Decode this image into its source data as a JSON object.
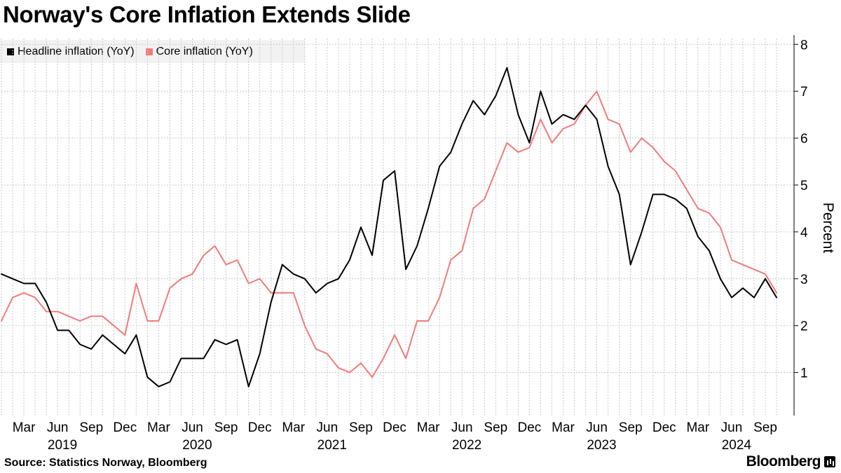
{
  "chart_data": {
    "type": "line",
    "title": "Norway's Core Inflation Extends Slide",
    "xlabel": "",
    "ylabel": "Percent",
    "ylim": [
      0,
      8
    ],
    "yticks": [
      1,
      2,
      3,
      4,
      5,
      6,
      7,
      8
    ],
    "grid": true,
    "legend_position": "top-left",
    "start": "2019-01",
    "x_tick_labels": [
      {
        "month": "Mar",
        "year": "2019",
        "index": 2
      },
      {
        "month": "Jun",
        "year": "",
        "index": 5
      },
      {
        "month": "Sep",
        "year": "",
        "index": 8
      },
      {
        "month": "Dec",
        "year": "",
        "index": 11
      },
      {
        "month": "Mar",
        "year": "2020",
        "index": 14
      },
      {
        "month": "Jun",
        "year": "",
        "index": 17
      },
      {
        "month": "Sep",
        "year": "",
        "index": 20
      },
      {
        "month": "Dec",
        "year": "",
        "index": 23
      },
      {
        "month": "Mar",
        "year": "2021",
        "index": 26
      },
      {
        "month": "Jun",
        "year": "",
        "index": 29
      },
      {
        "month": "Sep",
        "year": "",
        "index": 32
      },
      {
        "month": "Dec",
        "year": "",
        "index": 35
      },
      {
        "month": "Mar",
        "year": "2022",
        "index": 38
      },
      {
        "month": "Jun",
        "year": "",
        "index": 41
      },
      {
        "month": "Sep",
        "year": "",
        "index": 44
      },
      {
        "month": "Dec",
        "year": "",
        "index": 47
      },
      {
        "month": "Mar",
        "year": "2023",
        "index": 50
      },
      {
        "month": "Jun",
        "year": "",
        "index": 53
      },
      {
        "month": "Sep",
        "year": "",
        "index": 56
      },
      {
        "month": "Dec",
        "year": "",
        "index": 59
      },
      {
        "month": "Mar",
        "year": "2024",
        "index": 62
      },
      {
        "month": "Jun",
        "year": "",
        "index": 65
      },
      {
        "month": "Sep",
        "year": "",
        "index": 68
      }
    ],
    "series": [
      {
        "name": "Headline inflation (YoY)",
        "color": "#000000",
        "values": [
          3.1,
          3.0,
          2.9,
          2.9,
          2.5,
          1.9,
          1.9,
          1.6,
          1.5,
          1.8,
          1.6,
          1.4,
          1.8,
          0.9,
          0.7,
          0.8,
          1.3,
          1.3,
          1.3,
          1.7,
          1.6,
          1.7,
          0.7,
          1.4,
          2.5,
          3.3,
          3.1,
          3.0,
          2.7,
          2.9,
          3.0,
          3.4,
          4.1,
          3.5,
          5.1,
          5.3,
          3.2,
          3.7,
          4.5,
          5.4,
          5.7,
          6.3,
          6.8,
          6.5,
          6.9,
          7.5,
          6.5,
          5.9,
          7.0,
          6.3,
          6.5,
          6.4,
          6.7,
          6.4,
          5.4,
          4.8,
          3.3,
          4.0,
          4.8,
          4.8,
          4.7,
          4.5,
          3.9,
          3.6,
          3.0,
          2.6,
          2.8,
          2.6,
          3.0,
          2.6
        ]
      },
      {
        "name": "Core inflation (YoY)",
        "color": "#f07b7b",
        "values": [
          2.1,
          2.6,
          2.7,
          2.6,
          2.3,
          2.3,
          2.2,
          2.1,
          2.2,
          2.2,
          2.0,
          1.8,
          2.9,
          2.1,
          2.1,
          2.8,
          3.0,
          3.1,
          3.5,
          3.7,
          3.3,
          3.4,
          2.9,
          3.0,
          2.7,
          2.7,
          2.7,
          2.0,
          1.5,
          1.4,
          1.1,
          1.0,
          1.2,
          0.9,
          1.3,
          1.8,
          1.3,
          2.1,
          2.1,
          2.6,
          3.4,
          3.6,
          4.5,
          4.7,
          5.3,
          5.9,
          5.7,
          5.8,
          6.4,
          5.9,
          6.2,
          6.3,
          6.7,
          7.0,
          6.4,
          6.3,
          5.7,
          6.0,
          5.8,
          5.5,
          5.3,
          4.9,
          4.5,
          4.4,
          4.1,
          3.4,
          3.3,
          3.2,
          3.1,
          2.7
        ]
      }
    ]
  },
  "footer": {
    "source": "Source: Statistics Norway, Bloomberg",
    "brand": "Bloomberg"
  }
}
